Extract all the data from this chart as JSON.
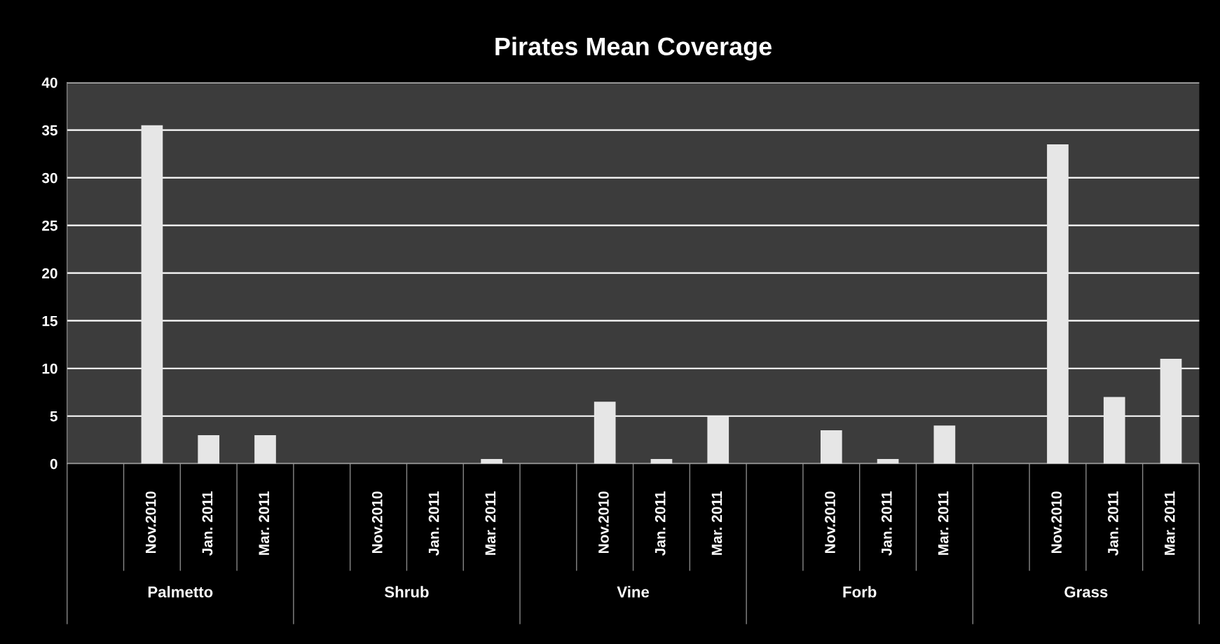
{
  "chart_data": {
    "type": "bar",
    "title": "Pirates Mean Coverage",
    "categories": [
      null,
      "Nov.2010",
      "Jan. 2011",
      "Mar. 2011",
      null,
      "Nov.2010",
      "Jan. 2011",
      "Mar. 2011",
      null,
      "Nov.2010",
      "Jan. 2011",
      "Mar. 2011",
      null,
      "Nov.2010",
      "Jan. 2011",
      "Mar. 2011",
      null,
      "Nov.2010",
      "Jan. 2011",
      "Mar. 2011"
    ],
    "values": [
      null,
      35.5,
      3,
      3,
      null,
      0,
      0,
      0.5,
      null,
      6.5,
      0.5,
      5,
      null,
      3.5,
      0.5,
      4,
      null,
      33.5,
      7,
      11
    ],
    "color": "#e6e6e6",
    "ylim": [
      0,
      40
    ],
    "yticks": [
      0,
      5,
      10,
      15,
      20,
      25,
      30,
      35,
      40
    ],
    "grid": "y",
    "annotations": [
      "Palmetto",
      "Shrub",
      "Vine",
      "Forb",
      "Grass"
    ]
  }
}
